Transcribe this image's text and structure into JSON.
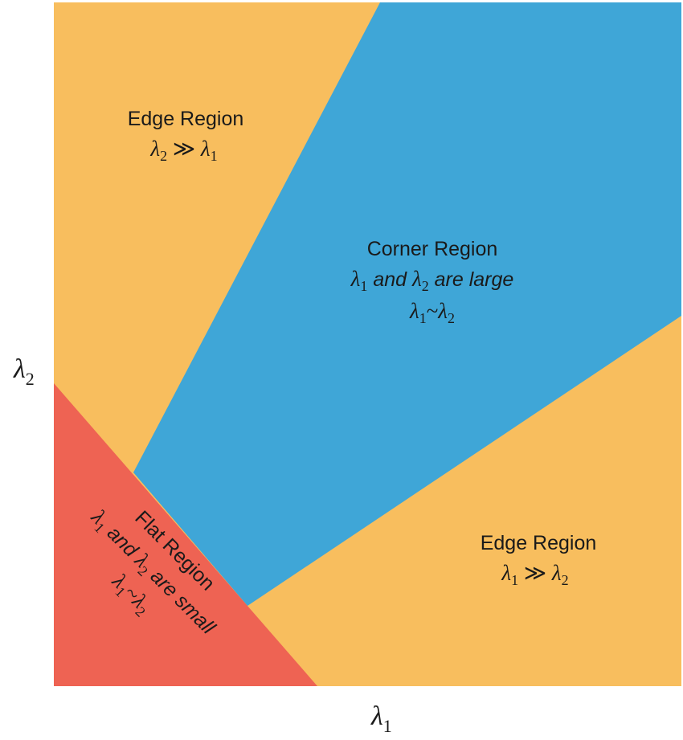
{
  "colors": {
    "edge": "#F8BE5E",
    "corner": "#3FA6D7",
    "flat": "#EE6353",
    "background": "#FFFFFF"
  },
  "axes": {
    "x_label": "λ",
    "x_label_sub": "1",
    "y_label": "λ",
    "y_label_sub": "2"
  },
  "regions": {
    "edge_top": {
      "title": "Edge Region",
      "cond_a": "λ",
      "cond_a_sub": "2",
      "cond_op": " ≫ ",
      "cond_b": "λ",
      "cond_b_sub": "1"
    },
    "corner": {
      "title": "Corner Region",
      "line2_a": "λ",
      "line2_a_sub": "1",
      "line2_mid": " and ",
      "line2_b": "λ",
      "line2_b_sub": "2",
      "line2_end": " are large",
      "line3_a": "λ",
      "line3_a_sub": "1",
      "line3_op": "~",
      "line3_b": "λ",
      "line3_b_sub": "2"
    },
    "edge_bottom": {
      "title": "Edge Region",
      "cond_a": "λ",
      "cond_a_sub": "1",
      "cond_op": " ≫ ",
      "cond_b": "λ",
      "cond_b_sub": "2"
    },
    "flat": {
      "title": "Flat Region",
      "line2_a": "λ",
      "line2_a_sub": "1",
      "line2_mid": " and ",
      "line2_b": "λ",
      "line2_b_sub": "2",
      "line2_end": " are small",
      "line3_a": "λ",
      "line3_a_sub": "1",
      "line3_op": "~",
      "line3_b": "λ",
      "line3_b_sub": "2"
    }
  }
}
